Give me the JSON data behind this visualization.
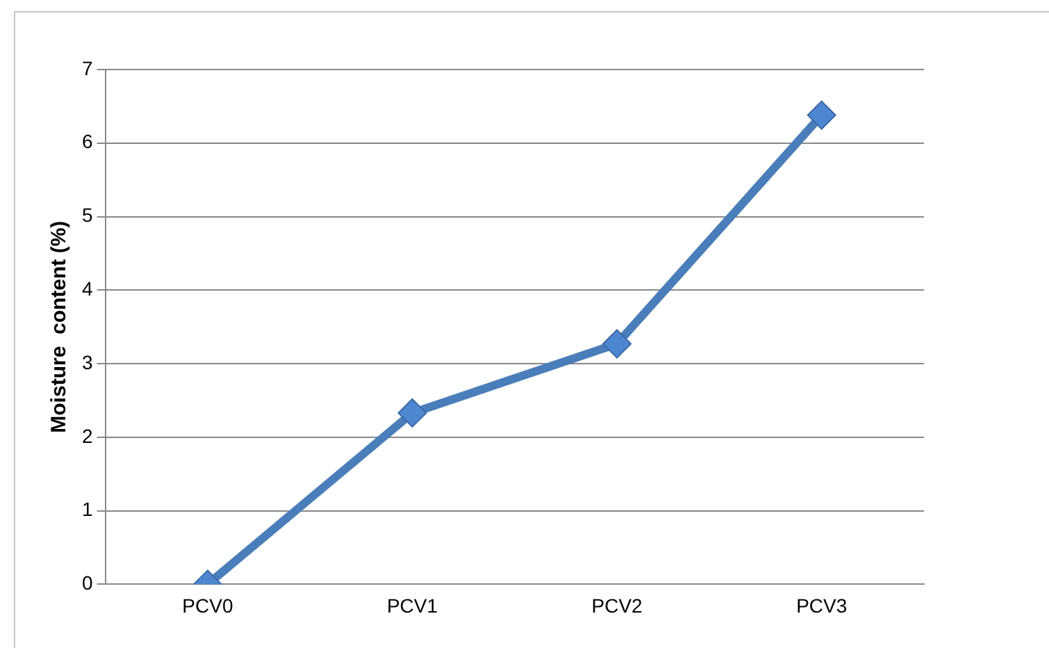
{
  "chart_data": {
    "type": "line",
    "ylabel": "Moisture  content (%)",
    "categories": [
      "PCV0",
      "PCV1",
      "PCV2",
      "PCV3"
    ],
    "series": [
      {
        "color": "#4a7ebb",
        "values": [
          0,
          2.33,
          3.27,
          6.38
        ]
      }
    ],
    "ylim": [
      0,
      7
    ],
    "yticks": [
      0,
      1,
      2,
      3,
      4,
      5,
      6,
      7
    ],
    "grid": "y",
    "legend": false,
    "marker": "diamond",
    "line_style": "solid"
  }
}
